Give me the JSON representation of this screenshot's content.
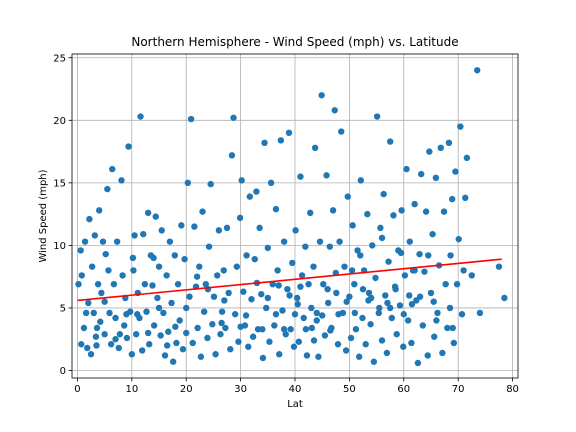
{
  "chart_data": {
    "type": "scatter",
    "title": "Northern Hemisphere - Wind Speed (mph) vs. Latitude",
    "xlabel": "Lat",
    "ylabel": "Wind Speed (mph)",
    "xlim": [
      -1,
      81
    ],
    "ylim": [
      -0.6,
      25.3
    ],
    "xticks": [
      0,
      10,
      20,
      30,
      40,
      50,
      60,
      70,
      80
    ],
    "yticks": [
      0,
      5,
      10,
      15,
      20,
      25
    ],
    "grid": true,
    "colors": {
      "points": "#1f77b4",
      "regression": "#ff0000",
      "grid": "#b0b0b0",
      "axes": "#000000"
    },
    "regression_line": {
      "x": [
        0,
        78
      ],
      "y": [
        5.6,
        8.9
      ]
    },
    "series": [
      {
        "points": [
          [
            0.2,
            6.9
          ],
          [
            0.6,
            9.6
          ],
          [
            0.7,
            2.1
          ],
          [
            0.8,
            7.6
          ],
          [
            1.2,
            3.4
          ],
          [
            1.4,
            10.3
          ],
          [
            1.6,
            4.6
          ],
          [
            1.8,
            1.8
          ],
          [
            2.0,
            5.4
          ],
          [
            2.2,
            12.1
          ],
          [
            2.5,
            1.3
          ],
          [
            2.7,
            8.3
          ],
          [
            3.0,
            4.6
          ],
          [
            3.2,
            10.8
          ],
          [
            3.4,
            2.7
          ],
          [
            3.6,
            3.4
          ],
          [
            3.8,
            6.9
          ],
          [
            4.0,
            12.8
          ],
          [
            4.2,
            3.9
          ],
          [
            4.4,
            6.2
          ],
          [
            4.7,
            10.3
          ],
          [
            5.0,
            2.9
          ],
          [
            5.2,
            9.3
          ],
          [
            5.5,
            14.5
          ],
          [
            5.7,
            8.0
          ],
          [
            5.9,
            4.6
          ],
          [
            6.2,
            2.1
          ],
          [
            6.4,
            16.1
          ],
          [
            6.7,
            6.9
          ],
          [
            7.0,
            4.2
          ],
          [
            7.3,
            10.3
          ],
          [
            7.6,
            1.8
          ],
          [
            7.8,
            2.9
          ],
          [
            8.1,
            15.2
          ],
          [
            8.3,
            7.6
          ],
          [
            8.6,
            3.6
          ],
          [
            8.8,
            5.8
          ],
          [
            9.1,
            2.6
          ],
          [
            9.4,
            17.9
          ],
          [
            9.7,
            4.7
          ],
          [
            10.0,
            1.3
          ],
          [
            10.3,
            8.0
          ],
          [
            10.5,
            10.8
          ],
          [
            10.8,
            2.9
          ],
          [
            11.1,
            6.2
          ],
          [
            11.4,
            4.2
          ],
          [
            11.6,
            20.3
          ],
          [
            11.9,
            1.6
          ],
          [
            12.1,
            10.9
          ],
          [
            12.4,
            6.9
          ],
          [
            12.7,
            4.7
          ],
          [
            13.0,
            12.6
          ],
          [
            13.2,
            2.1
          ],
          [
            13.5,
            9.2
          ],
          [
            13.8,
            6.8
          ],
          [
            14.1,
            3.6
          ],
          [
            14.4,
            12.3
          ],
          [
            14.7,
            5.8
          ],
          [
            15.0,
            8.3
          ],
          [
            15.3,
            2.8
          ],
          [
            15.5,
            11.2
          ],
          [
            15.8,
            4.6
          ],
          [
            16.1,
            1.2
          ],
          [
            16.4,
            7.6
          ],
          [
            16.7,
            3.1
          ],
          [
            17.0,
            10.3
          ],
          [
            17.3,
            5.4
          ],
          [
            17.6,
            0.7
          ],
          [
            17.9,
            9.2
          ],
          [
            18.2,
            2.2
          ],
          [
            18.5,
            6.9
          ],
          [
            18.8,
            4.0
          ],
          [
            19.1,
            11.6
          ],
          [
            19.4,
            1.7
          ],
          [
            19.7,
            8.9
          ],
          [
            20.0,
            3.0
          ],
          [
            20.3,
            15.0
          ],
          [
            20.6,
            5.9
          ],
          [
            20.9,
            20.1
          ],
          [
            21.2,
            2.2
          ],
          [
            21.5,
            11.5
          ],
          [
            21.8,
            6.7
          ],
          [
            22.1,
            3.4
          ],
          [
            22.4,
            8.3
          ],
          [
            22.7,
            1.1
          ],
          [
            23.0,
            12.7
          ],
          [
            23.3,
            4.7
          ],
          [
            23.6,
            6.9
          ],
          [
            23.9,
            2.6
          ],
          [
            24.2,
            9.9
          ],
          [
            24.5,
            14.9
          ],
          [
            24.8,
            3.7
          ],
          [
            25.1,
            5.9
          ],
          [
            25.4,
            1.3
          ],
          [
            25.7,
            7.6
          ],
          [
            26.0,
            11.2
          ],
          [
            26.3,
            2.9
          ],
          [
            26.6,
            4.7
          ],
          [
            26.9,
            8.0
          ],
          [
            27.2,
            3.4
          ],
          [
            27.5,
            11.4
          ],
          [
            27.8,
            6.2
          ],
          [
            28.1,
            1.7
          ],
          [
            28.4,
            17.2
          ],
          [
            28.7,
            20.2
          ],
          [
            29.0,
            4.5
          ],
          [
            29.3,
            8.3
          ],
          [
            29.6,
            2.3
          ],
          [
            29.9,
            12.2
          ],
          [
            30.2,
            15.2
          ],
          [
            30.5,
            6.3
          ],
          [
            30.8,
            3.6
          ],
          [
            31.1,
            9.2
          ],
          [
            31.4,
            1.9
          ],
          [
            31.7,
            13.9
          ],
          [
            32.0,
            5.7
          ],
          [
            32.3,
            2.7
          ],
          [
            32.6,
            8.9
          ],
          [
            32.9,
            14.3
          ],
          [
            33.2,
            3.3
          ],
          [
            33.5,
            11.4
          ],
          [
            33.8,
            6.1
          ],
          [
            34.1,
            1.0
          ],
          [
            34.4,
            18.2
          ],
          [
            34.7,
            5.0
          ],
          [
            35.0,
            9.8
          ],
          [
            35.3,
            2.3
          ],
          [
            35.6,
            15.0
          ],
          [
            35.9,
            6.9
          ],
          [
            36.2,
            3.6
          ],
          [
            36.5,
            12.9
          ],
          [
            36.8,
            8.0
          ],
          [
            37.1,
            1.3
          ],
          [
            37.4,
            18.4
          ],
          [
            37.7,
            4.8
          ],
          [
            38.0,
            10.3
          ],
          [
            38.3,
            2.9
          ],
          [
            38.6,
            6.5
          ],
          [
            38.9,
            19.0
          ],
          [
            39.2,
            3.3
          ],
          [
            39.5,
            8.6
          ],
          [
            39.8,
            1.9
          ],
          [
            40.1,
            11.2
          ],
          [
            40.4,
            5.8
          ],
          [
            40.7,
            2.3
          ],
          [
            41.0,
            15.5
          ],
          [
            41.3,
            7.6
          ],
          [
            41.6,
            4.2
          ],
          [
            41.9,
            9.9
          ],
          [
            42.2,
            1.2
          ],
          [
            42.5,
            6.9
          ],
          [
            42.8,
            12.6
          ],
          [
            43.1,
            3.4
          ],
          [
            43.4,
            8.3
          ],
          [
            43.7,
            17.8
          ],
          [
            44.0,
            4.6
          ],
          [
            44.3,
            1.1
          ],
          [
            44.6,
            10.3
          ],
          [
            44.9,
            22.0
          ],
          [
            45.2,
            6.9
          ],
          [
            45.5,
            2.8
          ],
          [
            45.8,
            15.6
          ],
          [
            46.1,
            5.4
          ],
          [
            46.4,
            9.9
          ],
          [
            46.7,
            3.4
          ],
          [
            47.0,
            12.8
          ],
          [
            47.3,
            20.8
          ],
          [
            47.6,
            6.2
          ],
          [
            47.9,
            2.1
          ],
          [
            48.2,
            10.3
          ],
          [
            48.5,
            19.1
          ],
          [
            48.8,
            4.6
          ],
          [
            49.1,
            8.3
          ],
          [
            49.4,
            1.6
          ],
          [
            49.7,
            13.9
          ],
          [
            50.0,
            5.9
          ],
          [
            50.3,
            2.6
          ],
          [
            50.6,
            11.6
          ],
          [
            50.9,
            6.9
          ],
          [
            51.2,
            3.3
          ],
          [
            51.5,
            9.6
          ],
          [
            51.8,
            1.1
          ],
          [
            52.1,
            15.2
          ],
          [
            52.4,
            4.2
          ],
          [
            52.7,
            8.0
          ],
          [
            53.0,
            2.1
          ],
          [
            53.3,
            12.5
          ],
          [
            53.6,
            6.2
          ],
          [
            53.9,
            3.7
          ],
          [
            54.2,
            10.0
          ],
          [
            54.5,
            0.7
          ],
          [
            54.8,
            7.4
          ],
          [
            55.1,
            20.3
          ],
          [
            55.4,
            4.6
          ],
          [
            55.7,
            11.4
          ],
          [
            56.0,
            2.4
          ],
          [
            56.3,
            14.1
          ],
          [
            56.6,
            6.0
          ],
          [
            56.9,
            1.4
          ],
          [
            57.2,
            8.7
          ],
          [
            57.5,
            18.3
          ],
          [
            57.8,
            4.2
          ],
          [
            58.1,
            12.4
          ],
          [
            58.4,
            6.7
          ],
          [
            58.7,
            2.9
          ],
          [
            59.0,
            9.6
          ],
          [
            59.3,
            5.2
          ],
          [
            59.6,
            12.8
          ],
          [
            59.9,
            1.9
          ],
          [
            60.2,
            7.6
          ],
          [
            60.5,
            16.1
          ],
          [
            60.8,
            4.0
          ],
          [
            61.1,
            10.3
          ],
          [
            61.4,
            2.2
          ],
          [
            61.7,
            8.0
          ],
          [
            62.0,
            13.3
          ],
          [
            62.3,
            5.6
          ],
          [
            62.6,
            0.6
          ],
          [
            62.9,
            9.3
          ],
          [
            63.2,
            15.7
          ],
          [
            63.5,
            3.6
          ],
          [
            63.8,
            7.9
          ],
          [
            64.1,
            12.7
          ],
          [
            64.4,
            1.2
          ],
          [
            64.7,
            17.5
          ],
          [
            65.0,
            6.2
          ],
          [
            65.3,
            10.9
          ],
          [
            65.6,
            2.7
          ],
          [
            65.9,
            15.4
          ],
          [
            66.2,
            4.6
          ],
          [
            66.5,
            8.4
          ],
          [
            66.8,
            17.8
          ],
          [
            67.1,
            1.4
          ],
          [
            67.4,
            12.7
          ],
          [
            67.7,
            6.9
          ],
          [
            68.0,
            3.4
          ],
          [
            68.3,
            18.2
          ],
          [
            68.6,
            9.2
          ],
          [
            68.9,
            13.7
          ],
          [
            69.2,
            2.2
          ],
          [
            69.5,
            15.9
          ],
          [
            69.8,
            6.9
          ],
          [
            70.1,
            10.5
          ],
          [
            70.4,
            19.5
          ],
          [
            70.7,
            4.5
          ],
          [
            71.0,
            8.0
          ],
          [
            71.3,
            13.8
          ],
          [
            71.6,
            17.0
          ],
          [
            72.5,
            7.6
          ],
          [
            73.5,
            24.0
          ],
          [
            74.0,
            4.6
          ],
          [
            77.5,
            8.3
          ],
          [
            78.5,
            5.8
          ],
          [
            10.2,
            9.0
          ],
          [
            14.0,
            9.0
          ],
          [
            22.0,
            7.5
          ],
          [
            27.0,
            5.6
          ],
          [
            33.0,
            7.0
          ],
          [
            36.5,
            4.5
          ],
          [
            40.0,
            4.5
          ],
          [
            43.0,
            5.0
          ],
          [
            46.0,
            6.5
          ],
          [
            49.5,
            5.5
          ],
          [
            52.5,
            6.5
          ],
          [
            55.5,
            5.0
          ],
          [
            58.5,
            6.5
          ],
          [
            61.0,
            6.0
          ],
          [
            63.0,
            5.9
          ],
          [
            65.5,
            5.5
          ],
          [
            68.5,
            5.0
          ],
          [
            38.0,
            3.3
          ],
          [
            42.0,
            3.3
          ],
          [
            44.0,
            4.0
          ],
          [
            48.0,
            4.5
          ],
          [
            51.0,
            4.6
          ],
          [
            53.5,
            5.6
          ],
          [
            57.0,
            5.4
          ],
          [
            60.0,
            4.5
          ],
          [
            24.0,
            6.5
          ],
          [
            30.0,
            3.5
          ],
          [
            35.0,
            5.8
          ],
          [
            39.0,
            6.0
          ],
          [
            41.0,
            6.7
          ],
          [
            45.0,
            4.4
          ],
          [
            47.5,
            7.8
          ],
          [
            52.0,
            9.2
          ],
          [
            56.0,
            10.6
          ],
          [
            59.5,
            9.4
          ],
          [
            62.0,
            8.0
          ],
          [
            64.5,
            9.2
          ],
          [
            20.0,
            5.0
          ],
          [
            18.0,
            3.5
          ],
          [
            16.5,
            2.0
          ],
          [
            15.0,
            5.0
          ],
          [
            13.0,
            3.0
          ],
          [
            11.0,
            4.5
          ],
          [
            9.0,
            4.5
          ],
          [
            7.0,
            2.5
          ],
          [
            5.0,
            5.5
          ],
          [
            3.5,
            2.0
          ],
          [
            26.5,
            3.8
          ],
          [
            31.0,
            4.4
          ],
          [
            34.0,
            3.3
          ],
          [
            37.0,
            6.8
          ],
          [
            40.5,
            5.3
          ],
          [
            43.5,
            2.4
          ],
          [
            46.5,
            3.2
          ],
          [
            50.5,
            8.0
          ],
          [
            54.0,
            5.8
          ],
          [
            57.5,
            5.0
          ],
          [
            61.5,
            5.3
          ],
          [
            66.0,
            4.0
          ],
          [
            69.0,
            3.4
          ]
        ]
      }
    ]
  }
}
